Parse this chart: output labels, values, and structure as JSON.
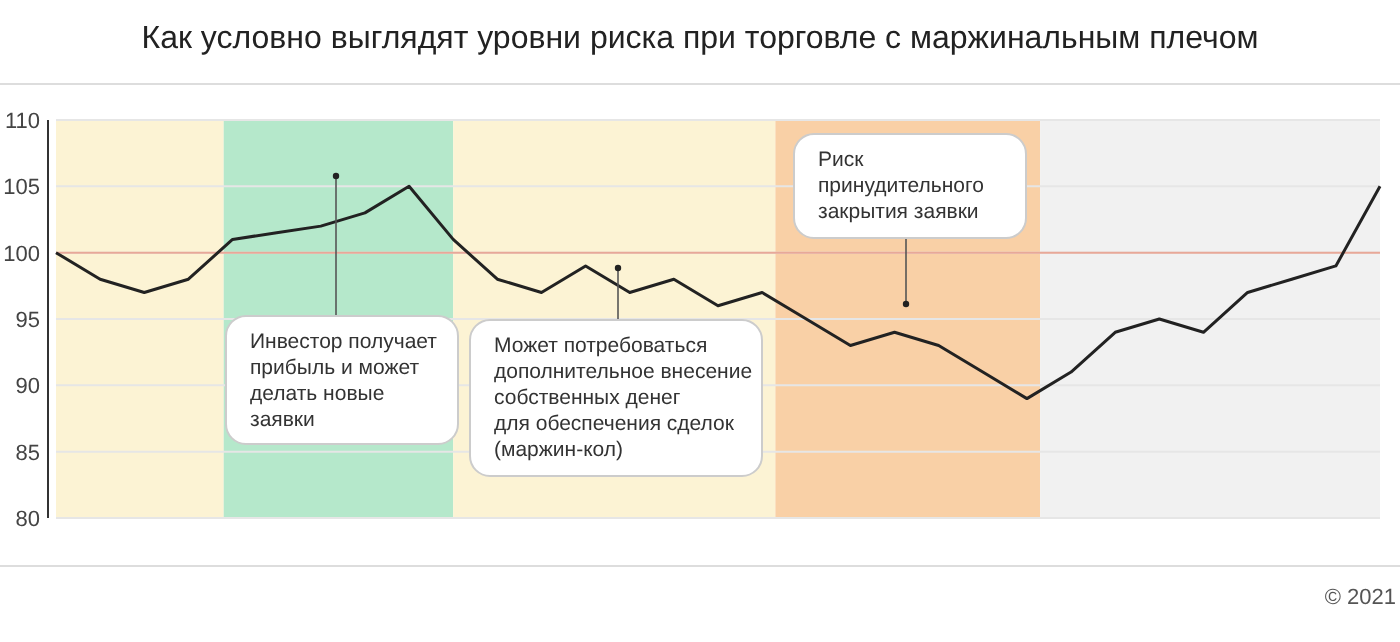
{
  "chart_data": {
    "type": "line",
    "title": "Как условно выглядят уровни риска при торговле с маржинальным плечом",
    "categories": [
      null,
      null,
      null,
      null,
      null,
      null,
      null,
      null,
      null,
      null,
      null,
      null,
      null,
      null,
      null,
      null,
      null,
      null,
      null,
      null,
      null,
      null,
      null,
      null,
      null,
      null,
      null,
      null,
      null,
      null,
      null
    ],
    "series": [
      {
        "color": "#222222",
        "values": [
          100,
          98,
          97,
          98,
          101,
          101.5,
          102,
          103,
          105,
          101,
          98,
          97,
          99,
          97,
          98,
          96,
          97,
          95,
          93,
          94,
          93,
          91,
          89,
          91,
          94,
          95,
          94,
          97,
          98,
          99,
          105
        ]
      }
    ],
    "ylim": [
      80,
      110
    ],
    "yticks": [
      80,
      85,
      90,
      95,
      100,
      105,
      110
    ],
    "grid": "y",
    "marker": "none",
    "line_style": "solid",
    "ref_lines": [
      {
        "axis": "y",
        "value": 100,
        "color": "#e8a898"
      }
    ],
    "annotations": [
      "Инвестор получает\nприбыль и может\nделать новые\nзаявки",
      "Может потребоваться\nдополнительное внесение\nсобственных денег\nдля обеспечения сделок\n(маржин-кол)",
      "Риск\nпринудительного\nзакрытия заявки",
      "© 2021"
    ]
  }
}
